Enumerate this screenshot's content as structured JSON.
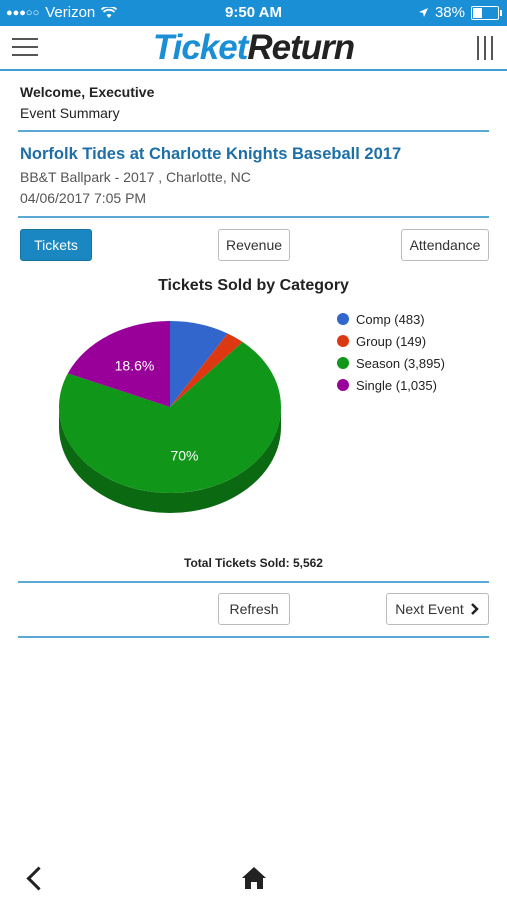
{
  "status_bar": {
    "carrier": "Verizon",
    "time": "9:50 AM",
    "battery": "38%"
  },
  "header": {
    "logo_part1": "Ticket",
    "logo_part2": "Return"
  },
  "welcome": "Welcome, Executive",
  "subtitle": "Event Summary",
  "event": {
    "title": "Norfolk Tides at Charlotte Knights Baseball 2017",
    "venue": "BB&T Ballpark - 2017 , Charlotte, NC",
    "datetime": "04/06/2017 7:05 PM"
  },
  "tabs": {
    "tickets": "Tickets",
    "revenue": "Revenue",
    "attendance": "Attendance"
  },
  "chart_data": {
    "type": "pie",
    "title": "Tickets Sold by Category",
    "categories": [
      "Comp",
      "Group",
      "Season",
      "Single"
    ],
    "values": [
      483,
      149,
      3895,
      1035
    ],
    "legend_labels": [
      "Comp (483)",
      "Group (149)",
      "Season (3,895)",
      "Single (1,035)"
    ],
    "colors": [
      "#3366cc",
      "#dc3912",
      "#109618",
      "#990099"
    ],
    "slice_labels": [
      "",
      "",
      "70%",
      "18.6%"
    ],
    "legend_position": "right"
  },
  "total_label": "Total Tickets Sold: 5,562",
  "actions": {
    "refresh": "Refresh",
    "next_event": "Next Event"
  },
  "icons": {
    "menu": "hamburger-icon",
    "back": "chevron-left-icon",
    "home": "home-icon"
  }
}
